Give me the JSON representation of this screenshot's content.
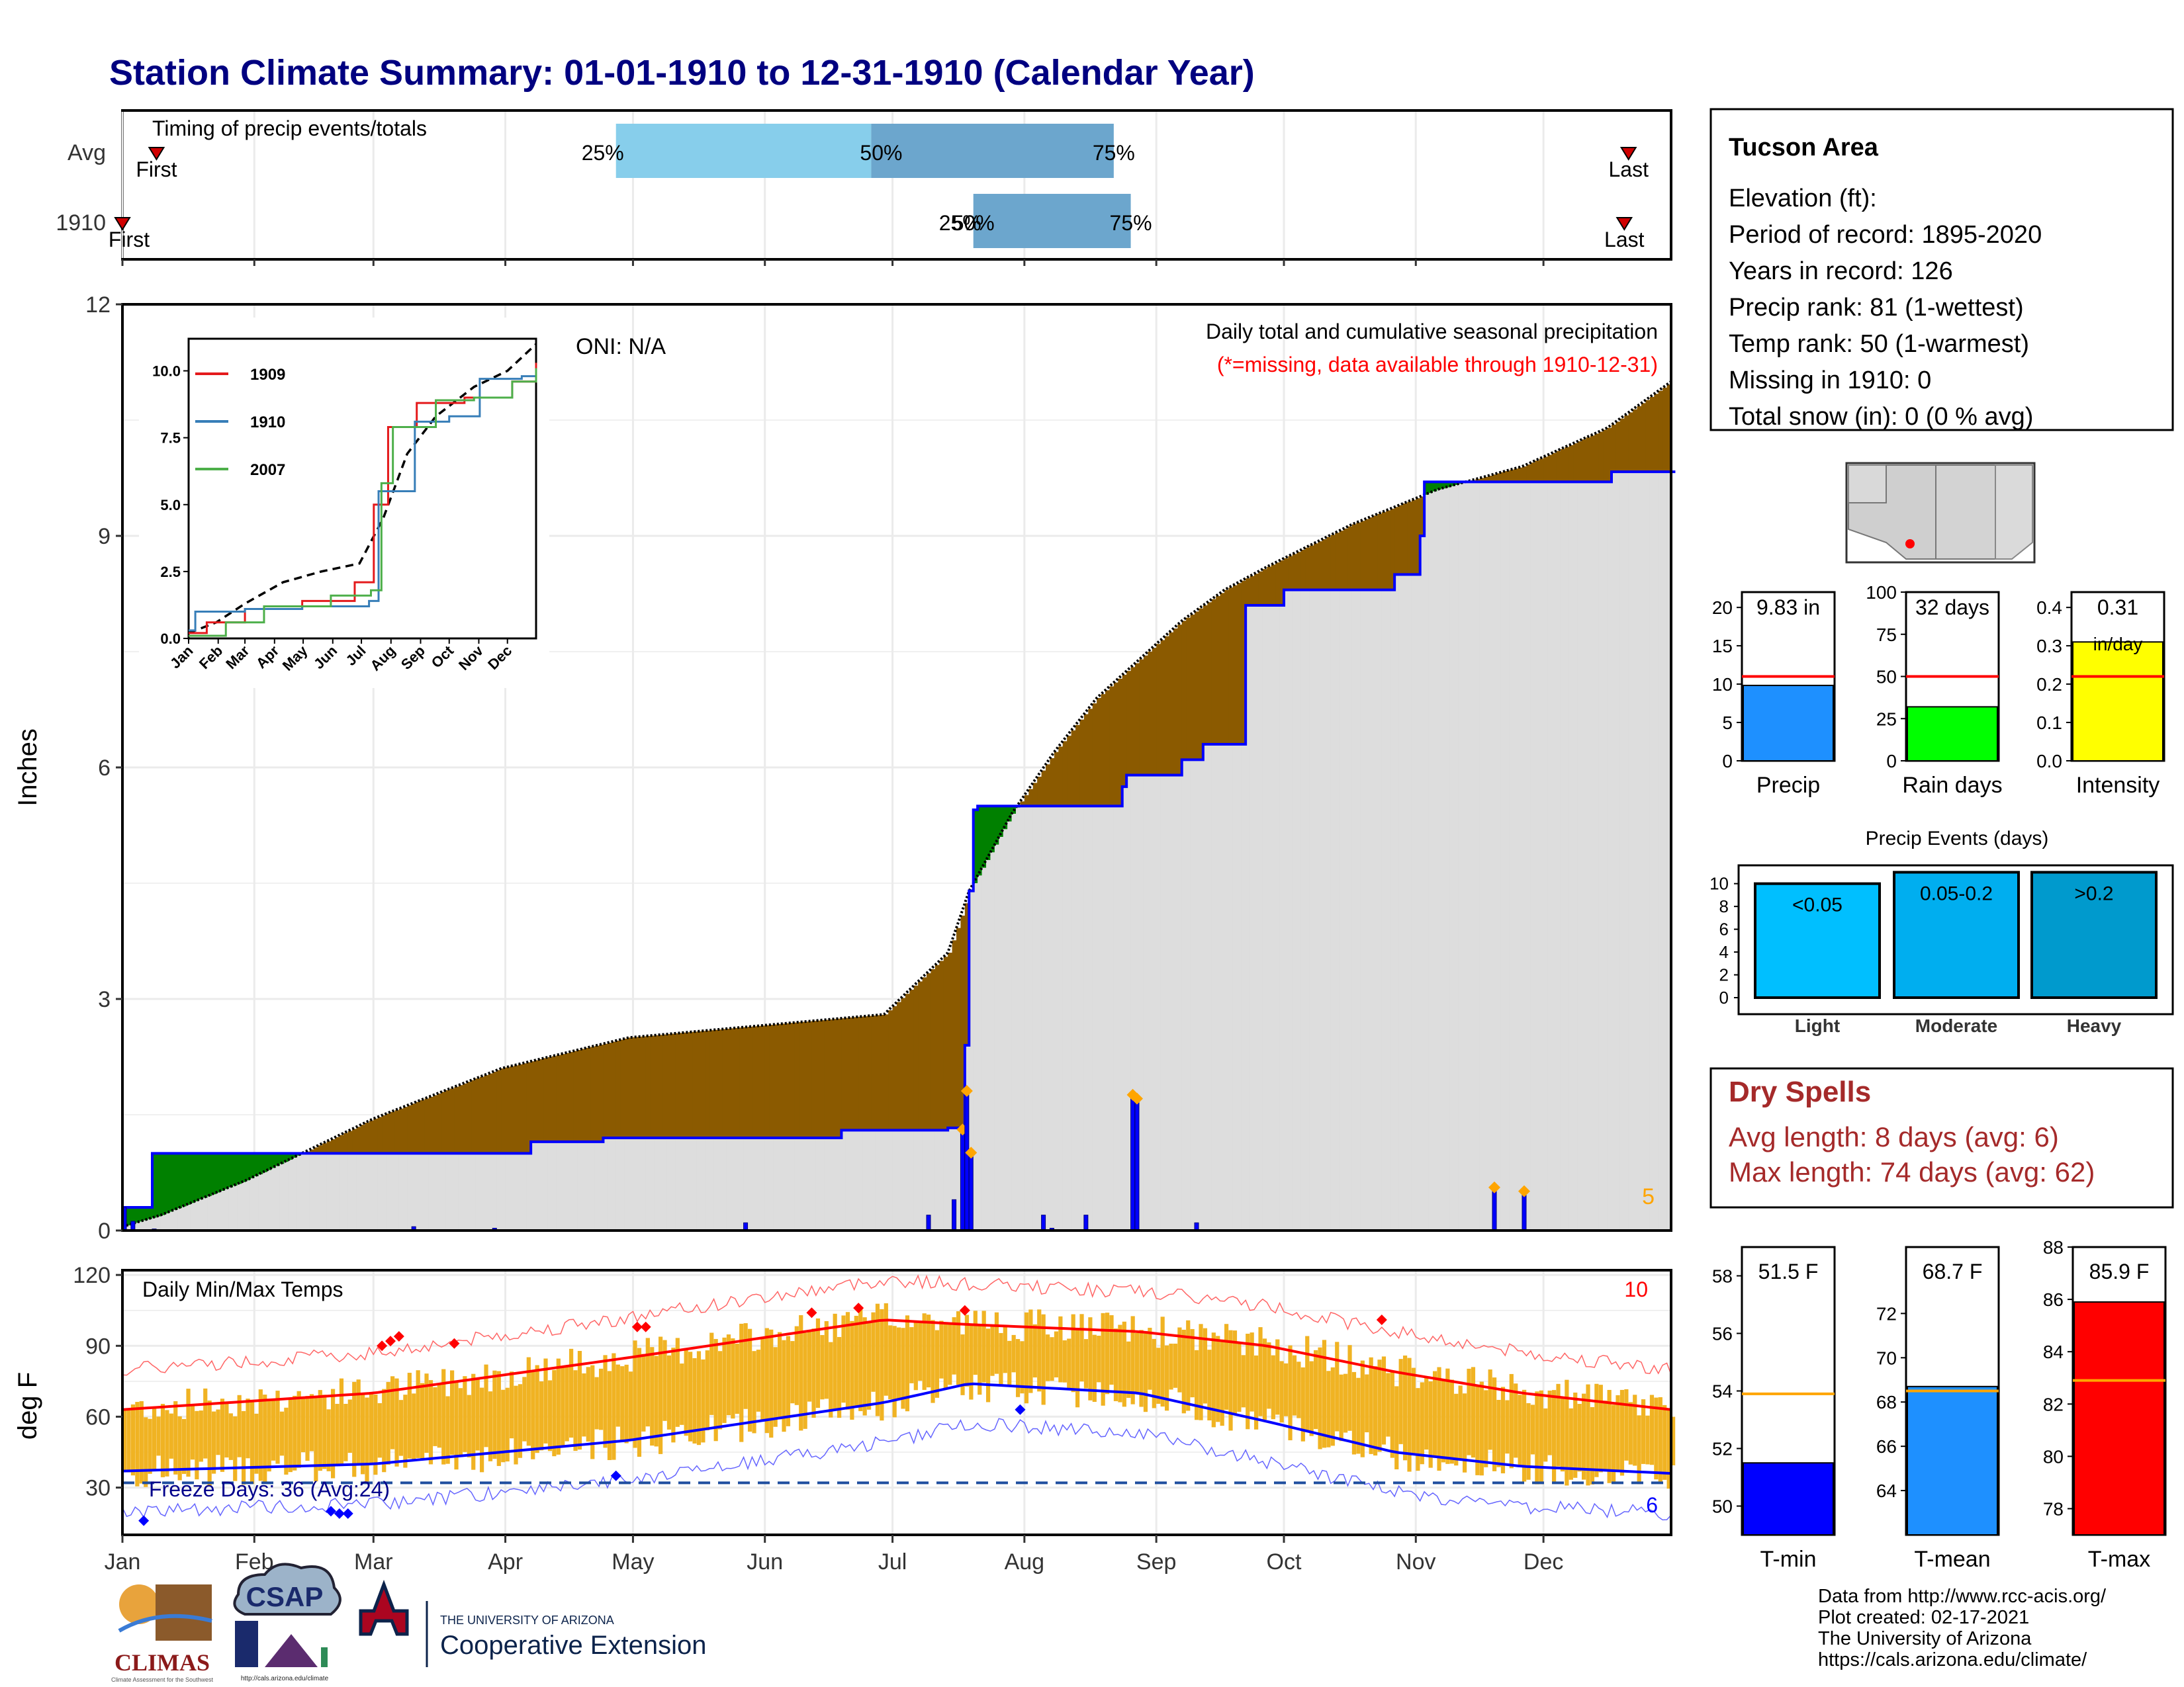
{
  "title": "Station Climate Summary: 01-01-1910 to 12-31-1910 (Calendar Year)",
  "months": [
    "Jan",
    "Feb",
    "Mar",
    "Apr",
    "May",
    "Jun",
    "Jul",
    "Aug",
    "Sep",
    "Oct",
    "Nov",
    "Dec"
  ],
  "timing": {
    "label": "Timing of precip events/totals",
    "rows": [
      {
        "name": "Avg",
        "first": "First",
        "last": "Last",
        "first_doy": 9,
        "last_doy": 355,
        "p25_doy": 117,
        "p50_doy": 177,
        "p75_doy": 234,
        "p25": "25%",
        "p50": "50%",
        "p75": "75%"
      },
      {
        "name": "1910",
        "first": "First",
        "last": "Last",
        "first_doy": 1,
        "last_doy": 354,
        "p25_doy": 201,
        "p50_doy": 201,
        "p75_doy": 238,
        "p25": "25%",
        "p50": "50%",
        "p75": "75%"
      }
    ]
  },
  "precip_panel": {
    "ylabel": "Inches",
    "yticks": [
      0,
      3,
      6,
      9,
      12
    ],
    "header": "Daily total and cumulative seasonal precipitation",
    "missing_note": "(*=missing, data available through 1910-12-31)",
    "oni": "ONI: N/A",
    "corner_count": "5",
    "colors": {
      "deficit": "#8B5A00",
      "surplus": "#008000",
      "obs_line": "#0000FF",
      "avg_line": "#000000",
      "fill": "#DDDDDD",
      "marker": "#FFA500"
    }
  },
  "inset": {
    "yticks": [
      "0.0",
      "2.5",
      "5.0",
      "7.5",
      "10.0"
    ],
    "xticks": [
      "Jan",
      "Feb",
      "Mar",
      "Apr",
      "May",
      "Jun",
      "Jul",
      "Aug",
      "Sep",
      "Oct",
      "Nov",
      "Dec"
    ],
    "legend": [
      {
        "name": "1909",
        "color": "#E41A1C"
      },
      {
        "name": "1910",
        "color": "#377EB8"
      },
      {
        "name": "2007",
        "color": "#4DAF4A"
      }
    ]
  },
  "temp_panel": {
    "ylabel": "deg F",
    "yticks": [
      30,
      60,
      90,
      120
    ],
    "label": "Daily Min/Max Temps",
    "freeze": "Freeze Days: 36 (Avg:24)",
    "count_hot": "10",
    "count_cold": "6"
  },
  "station": {
    "name": "Tucson Area",
    "lines": [
      "Elevation (ft):",
      "Period of record: 1895-2020",
      "Years in record: 126",
      "Precip rank: 81 (1-wettest)",
      "Temp rank: 50 (1-warmest)",
      "Missing in 1910: 0",
      "Total snow (in): 0 (0 % avg)"
    ]
  },
  "mini_bars": [
    {
      "label": "Precip",
      "value_text": "9.83 in",
      "value": 9.83,
      "avg": 11.0,
      "max": 22,
      "ticks": [
        "0",
        "5",
        "10",
        "15",
        "20"
      ],
      "tickvals": [
        0,
        5,
        10,
        15,
        20
      ],
      "color": "#1E90FF"
    },
    {
      "label": "Rain days",
      "value_text": "32 days",
      "value": 32,
      "avg": 50,
      "max": 100,
      "ticks": [
        "0",
        "25",
        "50",
        "75",
        "100"
      ],
      "tickvals": [
        0,
        25,
        50,
        75,
        100
      ],
      "color": "#00FF00"
    },
    {
      "label": "Intensity",
      "value_text": "0.31",
      "value_sub": "in/day",
      "value": 0.31,
      "avg": 0.22,
      "max": 0.44,
      "ticks": [
        "0.0",
        "0.1",
        "0.2",
        "0.3",
        "0.4"
      ],
      "tickvals": [
        0,
        0.1,
        0.2,
        0.3,
        0.4
      ],
      "color": "#FFFF00"
    }
  ],
  "events": {
    "title": "Precip Events (days)",
    "yticks": [
      "0",
      "2",
      "4",
      "6",
      "8",
      "10"
    ],
    "bars": [
      {
        "label": "Light",
        "tag": "<0.05",
        "value": 10,
        "color": "#00BFFF"
      },
      {
        "label": "Moderate",
        "tag": "0.05-0.2",
        "value": 11,
        "color": "#00AEEF"
      },
      {
        "label": "Heavy",
        "tag": ">0.2",
        "value": 11,
        "color": "#009ACD"
      }
    ]
  },
  "dry_spells": {
    "title": "Dry Spells",
    "avg": "Avg length: 8 days (avg: 6)",
    "max": "Max length: 74 days (avg: 62)"
  },
  "temp_bars": [
    {
      "label": "T-min",
      "value_text": "51.5 F",
      "value": 51.5,
      "avg": 53.9,
      "min": 49,
      "max": 59,
      "ticks": [
        50,
        52,
        54,
        56,
        58
      ],
      "color": "#0000FF"
    },
    {
      "label": "T-mean",
      "value_text": "68.7 F",
      "value": 68.7,
      "avg": 68.5,
      "min": 62,
      "max": 75,
      "ticks": [
        64,
        66,
        68,
        70,
        72
      ],
      "color": "#1E90FF"
    },
    {
      "label": "T-max",
      "value_text": "85.9 F",
      "value": 85.9,
      "avg": 82.9,
      "min": 77,
      "max": 88,
      "ticks": [
        78,
        80,
        82,
        84,
        86,
        88
      ],
      "color": "#FF0000"
    }
  ],
  "credits": [
    "Data from http://www.rcc-acis.org/",
    "Plot created: 02-17-2021",
    "The University of Arizona",
    "https://cals.arizona.edu/climate/"
  ],
  "logos": {
    "climas": "CLIMAS",
    "climas_sub": "Climate Assessment for the Southwest",
    "csap": "CSAP",
    "csap_url": "http://cals.arizona.edu/climate",
    "ua_small": "THE UNIVERSITY OF ARIZONA",
    "ua_big": "Cooperative Extension"
  },
  "chart_data": [
    {
      "type": "area",
      "title": "Daily total and cumulative seasonal precipitation",
      "ylabel": "Inches",
      "ylim": [
        0,
        12
      ],
      "x_unit": "day of year 1910",
      "series": [
        {
          "name": "",
          "x": [
            1,
            10,
            30,
            60,
            90,
            120,
            150,
            180,
            195,
            200,
            210,
            220,
            230,
            240,
            250,
            260,
            270,
            290,
            310,
            330,
            350,
            365
          ],
          "values": [
            0.05,
            0.2,
            0.65,
            1.45,
            2.1,
            2.5,
            2.65,
            2.8,
            3.6,
            4.4,
            5.4,
            6.2,
            6.9,
            7.4,
            7.9,
            8.3,
            8.6,
            9.15,
            9.6,
            9.9,
            10.4,
            11.0
          ]
        },
        {
          "name": "",
          "x": [
            1,
            7,
            8,
            60,
            96,
            97,
            113,
            114,
            150,
            170,
            195,
            199,
            200,
            201,
            202,
            236,
            237,
            250,
            255,
            265,
            274,
            300,
            306,
            307,
            350,
            351,
            365
          ],
          "values": [
            0.3,
            0.3,
            1.0,
            1.0,
            1.0,
            1.15,
            1.15,
            1.2,
            1.2,
            1.3,
            1.33,
            2.4,
            4.4,
            5.45,
            5.5,
            5.75,
            5.9,
            6.1,
            6.3,
            8.1,
            8.3,
            8.5,
            9.0,
            9.7,
            9.7,
            9.83,
            9.83
          ]
        }
      ],
      "daily_bars": {
        "x": [
          1,
          3,
          8,
          69,
          88,
          147,
          190,
          196,
          198,
          199,
          200,
          217,
          219,
          227,
          238,
          239,
          253,
          323,
          330
        ],
        "values": [
          0.3,
          0.12,
          0.02,
          0.05,
          0.03,
          0.1,
          0.2,
          0.4,
          1.3,
          1.8,
          1.0,
          0.2,
          0.03,
          0.2,
          1.75,
          1.7,
          0.1,
          0.55,
          0.5
        ]
      }
    },
    {
      "type": "line",
      "title": "Daily Min/Max Temps",
      "ylabel": "deg F",
      "ylim": [
        10,
        122
      ],
      "series": [
        {
          "name": "",
          "x": [
            1,
            60,
            120,
            180,
            200,
            240,
            270,
            300,
            330,
            365
          ],
          "values": [
            63,
            70,
            85,
            101,
            99,
            96,
            90,
            79,
            70,
            63
          ]
        },
        {
          "name": "",
          "x": [
            1,
            60,
            120,
            180,
            200,
            240,
            270,
            300,
            330,
            365
          ],
          "values": [
            37,
            40,
            50,
            66,
            74,
            70,
            58,
            45,
            39,
            36
          ]
        }
      ],
      "freeze_line": 32
    }
  ]
}
